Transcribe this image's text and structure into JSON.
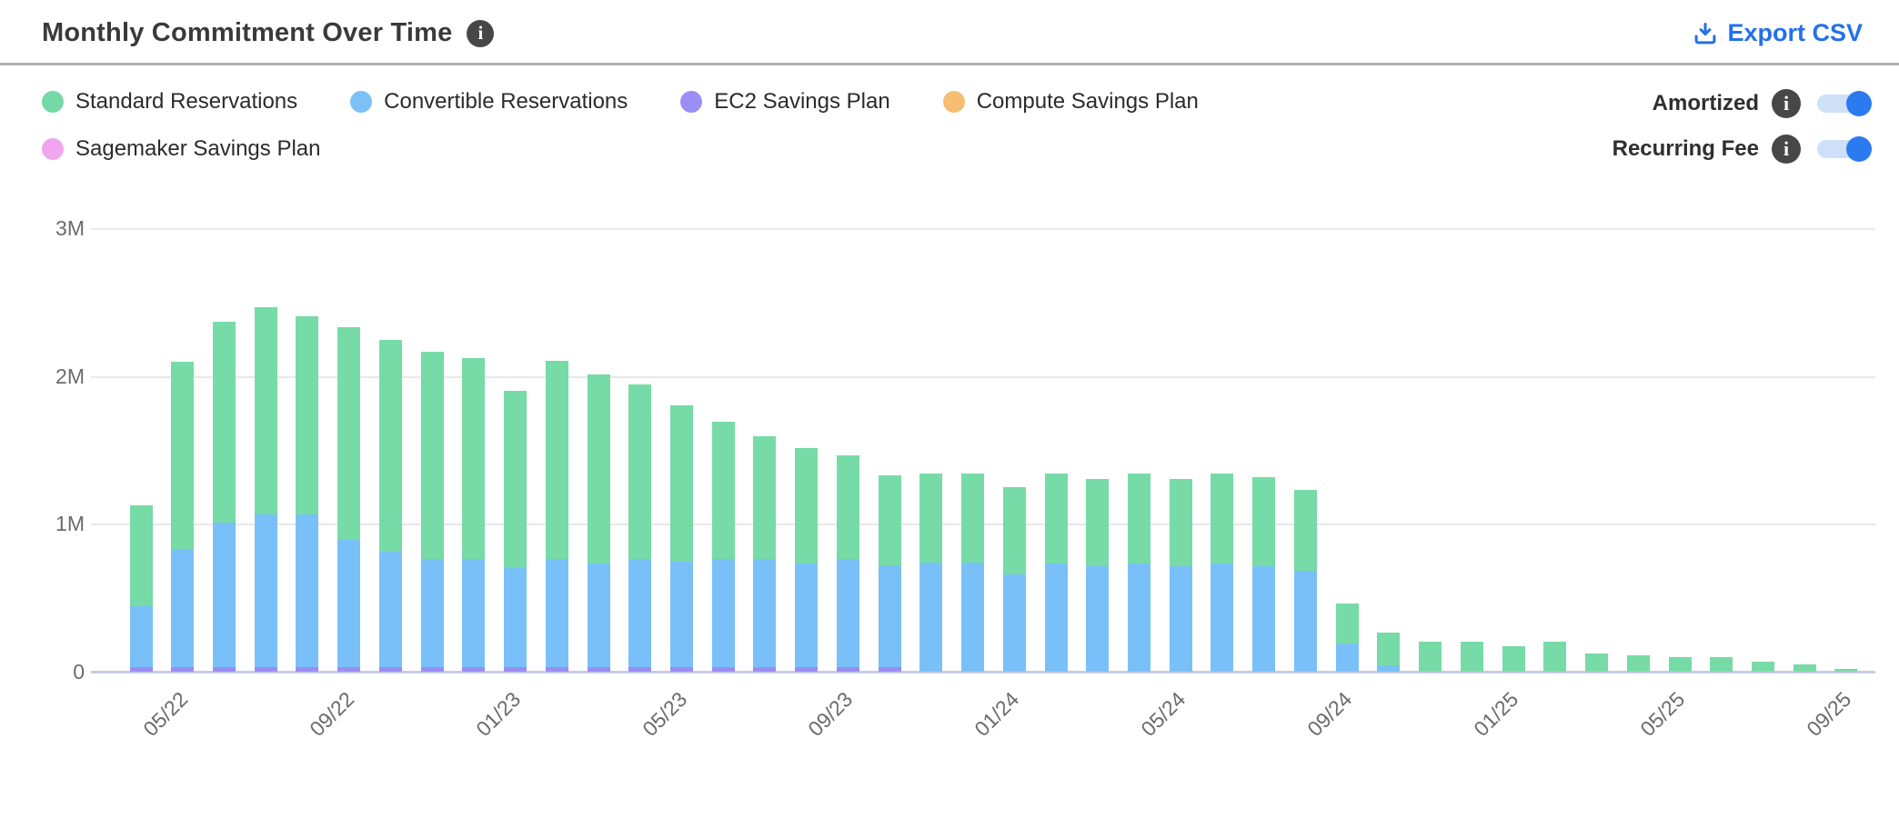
{
  "header": {
    "title": "Monthly Commitment Over Time",
    "title_info_icon": "info-circle-icon",
    "export_label": "Export CSV",
    "export_icon": "download-icon",
    "accent_color": "#2470ea"
  },
  "legend": {
    "items": [
      {
        "label": "Standard Reservations",
        "color": "#74d9a4"
      },
      {
        "label": "Convertible Reservations",
        "color": "#7cc0f8"
      },
      {
        "label": "EC2 Savings Plan",
        "color": "#9b8ff5"
      },
      {
        "label": "Compute Savings Plan",
        "color": "#f5be72"
      },
      {
        "label": "Sagemaker Savings Plan",
        "color": "#f0a6ee"
      }
    ]
  },
  "toggles": {
    "on_color": "#2b7af0",
    "track_color": "#cde0f8",
    "items": [
      {
        "label": "Amortized",
        "state": "on"
      },
      {
        "label": "Recurring Fee",
        "state": "on"
      }
    ]
  },
  "chart_data": {
    "type": "bar",
    "stacked": true,
    "title": "Monthly Commitment Over Time",
    "xlabel": "",
    "ylabel": "",
    "unit": "USD millions",
    "ylim": [
      0,
      3000000
    ],
    "grid": true,
    "legend_position": "top-left",
    "y_tick_labels": [
      "0",
      "1M",
      "2M",
      "3M"
    ],
    "x_tick_labels": [
      "05/22",
      "09/22",
      "01/23",
      "05/23",
      "09/23",
      "01/24",
      "05/24",
      "09/24",
      "01/25",
      "05/25",
      "09/25"
    ],
    "categories": [
      "04/22",
      "05/22",
      "06/22",
      "07/22",
      "08/22",
      "09/22",
      "10/22",
      "11/22",
      "12/22",
      "01/23",
      "02/23",
      "03/23",
      "04/23",
      "05/23",
      "06/23",
      "07/23",
      "08/23",
      "09/23",
      "10/23",
      "11/23",
      "12/23",
      "01/24",
      "02/24",
      "03/24",
      "04/24",
      "05/24",
      "06/24",
      "07/24",
      "08/24",
      "09/24",
      "10/24",
      "11/24",
      "12/24",
      "01/25",
      "02/25",
      "03/25",
      "04/25",
      "05/25",
      "06/25",
      "07/25",
      "08/25",
      "09/25"
    ],
    "values_unit": "M",
    "series": [
      {
        "name": "Standard Reservations",
        "color": "#76dba6",
        "values": [
          0.68,
          1.27,
          1.36,
          1.4,
          1.34,
          1.44,
          1.43,
          1.4,
          1.36,
          1.2,
          1.34,
          1.28,
          1.18,
          1.06,
          0.93,
          0.83,
          0.78,
          0.7,
          0.61,
          0.6,
          0.6,
          0.59,
          0.61,
          0.59,
          0.61,
          0.59,
          0.61,
          0.6,
          0.55,
          0.27,
          0.22,
          0.2,
          0.2,
          0.17,
          0.2,
          0.12,
          0.11,
          0.1,
          0.1,
          0.07,
          0.05,
          0.02
        ]
      },
      {
        "name": "Convertible Reservations",
        "color": "#79c0f9",
        "values": [
          0.41,
          0.79,
          0.98,
          1.03,
          1.03,
          0.86,
          0.78,
          0.73,
          0.73,
          0.67,
          0.73,
          0.7,
          0.73,
          0.71,
          0.73,
          0.73,
          0.7,
          0.73,
          0.69,
          0.74,
          0.74,
          0.66,
          0.73,
          0.71,
          0.73,
          0.71,
          0.73,
          0.71,
          0.68,
          0.19,
          0.04,
          0,
          0,
          0,
          0,
          0,
          0,
          0,
          0,
          0,
          0,
          0
        ]
      },
      {
        "name": "EC2 Savings Plan",
        "color": "#9b8df4",
        "values": [
          0.03,
          0.03,
          0.03,
          0.03,
          0.03,
          0.03,
          0.03,
          0.03,
          0.03,
          0.03,
          0.03,
          0.03,
          0.03,
          0.03,
          0.03,
          0.03,
          0.03,
          0.03,
          0.03,
          0,
          0,
          0,
          0,
          0,
          0,
          0,
          0,
          0,
          0,
          0,
          0,
          0,
          0,
          0,
          0,
          0,
          0,
          0,
          0,
          0,
          0,
          0
        ]
      },
      {
        "name": "Compute Savings Plan",
        "color": "#f5be72",
        "values": [
          0,
          0,
          0,
          0,
          0,
          0,
          0,
          0,
          0,
          0,
          0,
          0,
          0,
          0,
          0,
          0,
          0,
          0,
          0,
          0,
          0,
          0,
          0,
          0,
          0,
          0,
          0,
          0,
          0,
          0,
          0,
          0,
          0,
          0,
          0,
          0,
          0,
          0,
          0,
          0,
          0,
          0
        ]
      },
      {
        "name": "Sagemaker Savings Plan",
        "color": "#f0a6ee",
        "values": [
          0,
          0,
          0,
          0,
          0,
          0,
          0,
          0,
          0,
          0,
          0,
          0,
          0,
          0,
          0,
          0,
          0,
          0,
          0,
          0,
          0,
          0,
          0,
          0,
          0,
          0,
          0,
          0,
          0,
          0,
          0,
          0,
          0,
          0,
          0,
          0,
          0,
          0,
          0,
          0,
          0,
          0
        ]
      }
    ],
    "stack_order_bottom_to_top": [
      "Sagemaker Savings Plan",
      "Compute Savings Plan",
      "EC2 Savings Plan",
      "Convertible Reservations",
      "Standard Reservations"
    ]
  }
}
